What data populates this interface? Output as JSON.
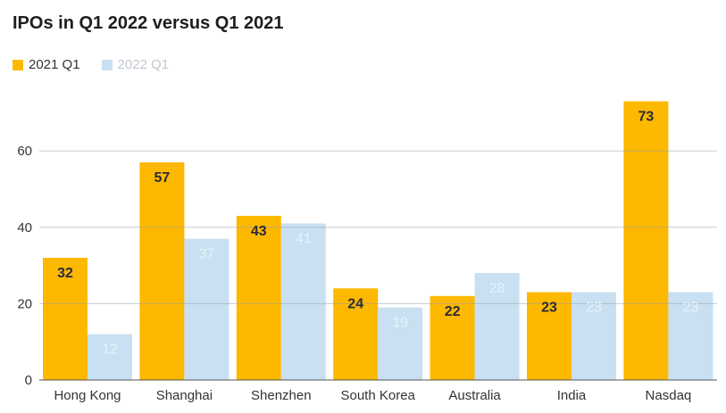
{
  "chart_data": {
    "type": "bar",
    "title": "IPOs in Q1 2022 versus Q1 2021",
    "categories": [
      "Hong Kong",
      "Shanghai",
      "Shenzhen",
      "South Korea",
      "Australia",
      "India",
      "Nasdaq"
    ],
    "series": [
      {
        "name": "2021 Q1",
        "color": "#fdb800",
        "label_color": "#2b2b3a",
        "values": [
          32,
          57,
          43,
          24,
          22,
          23,
          73
        ]
      },
      {
        "name": "2022 Q1",
        "color": "#c8e0f1",
        "label_color": "#e9f1f8",
        "values": [
          12,
          37,
          41,
          19,
          28,
          23,
          23
        ]
      }
    ],
    "yticks": [
      0,
      20,
      40,
      60
    ],
    "ylim": [
      0,
      80
    ],
    "xlabel": "",
    "ylabel": "",
    "grid": true,
    "legend": "top-left"
  }
}
